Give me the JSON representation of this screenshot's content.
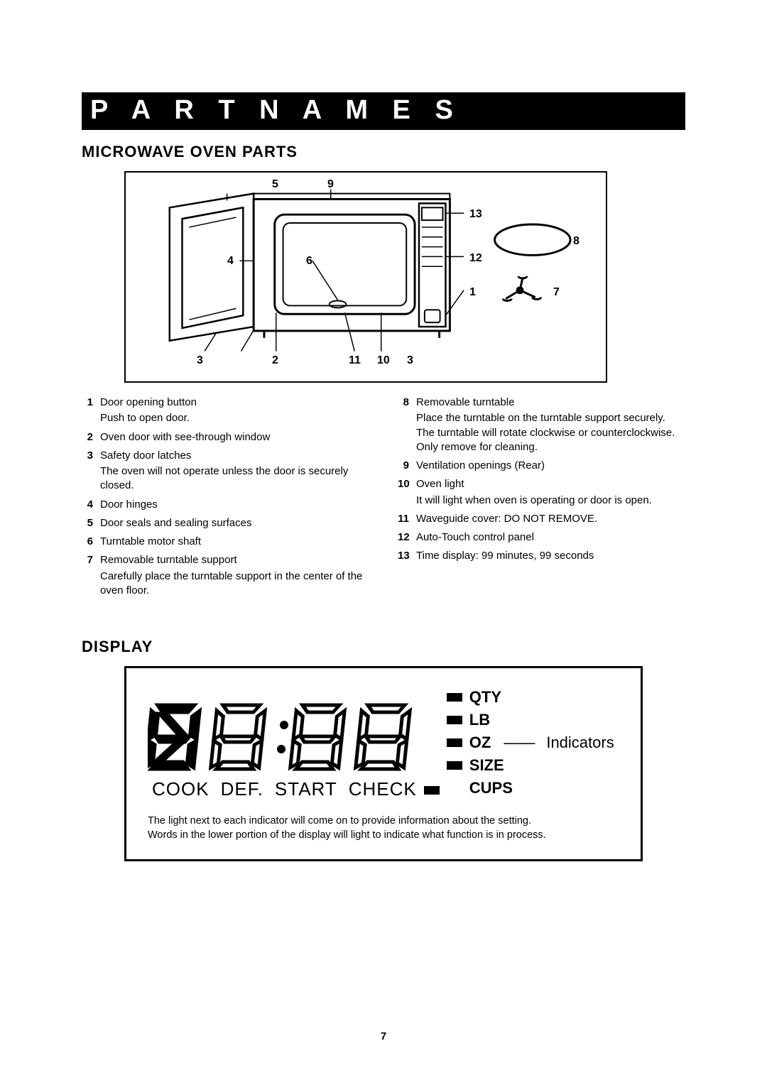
{
  "title_bar": "P A R T   N A M E S",
  "section1_heading": "MICROWAVE OVEN PARTS",
  "diagram_labels": {
    "n5": "5",
    "n9": "9",
    "n13": "13",
    "n8": "8",
    "n4": "4",
    "n6": "6",
    "n12": "12",
    "n1": "1",
    "n7": "7",
    "n3a": "3",
    "n2": "2",
    "n11": "11",
    "n10": "10",
    "n3b": "3"
  },
  "parts_left": [
    {
      "num": "1",
      "title": "Door opening button",
      "sub": "Push to open door."
    },
    {
      "num": "2",
      "title": "Oven door with see-through window"
    },
    {
      "num": "3",
      "title": "Safety door latches",
      "sub": "The oven will not operate unless the door is  securely closed."
    },
    {
      "num": "4",
      "title": "Door hinges"
    },
    {
      "num": "5",
      "title": "Door seals and sealing surfaces"
    },
    {
      "num": "6",
      "title": "Turntable motor shaft"
    },
    {
      "num": "7",
      "title": "Removable turntable support",
      "sub": "Carefully place the turntable support in the center of the oven floor."
    }
  ],
  "parts_right": [
    {
      "num": "8",
      "title": "Removable turntable",
      "sub": "Place the turntable on the turntable support securely. The turntable will rotate clockwise or counterclockwise. Only remove for cleaning."
    },
    {
      "num": "9",
      "title": "Ventilation openings (Rear)"
    },
    {
      "num": "10",
      "title": "Oven light",
      "sub": "It will light when oven is operating or door is open."
    },
    {
      "num": "11",
      "title": "Waveguide cover: DO NOT REMOVE."
    },
    {
      "num": "12",
      "title": "Auto-Touch control panel"
    },
    {
      "num": "13",
      "title": "Time display: 99 minutes, 99 seconds"
    }
  ],
  "section2_heading": "DISPLAY",
  "status_words": [
    "COOK",
    "DEF.",
    "START",
    "CHECK"
  ],
  "indicators": [
    "QTY",
    "LB",
    "OZ",
    "SIZE",
    "CUPS"
  ],
  "indicator_pointer_label": "Indicators",
  "display_note1": "The light next to each indicator will come on to provide information about the setting.",
  "display_note2": "Words in the lower portion of the display will light to indicate what function is in process.",
  "page_number": "7",
  "colors": {
    "black": "#000000",
    "white": "#ffffff"
  }
}
